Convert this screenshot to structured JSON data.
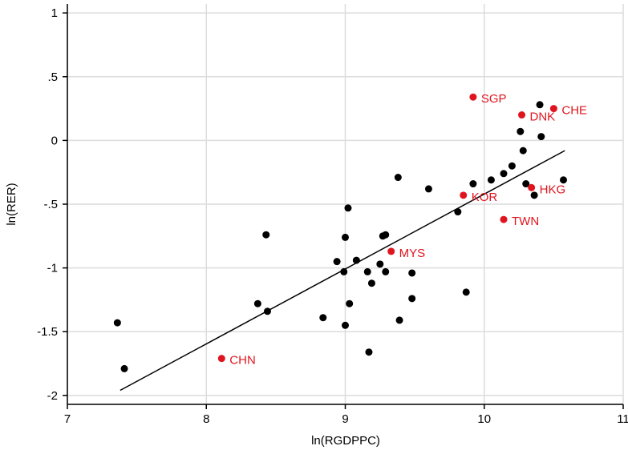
{
  "chart_data": {
    "type": "scatter",
    "title": "",
    "xlabel": "ln(RGDPPC)",
    "ylabel": "ln(RER)",
    "xlim": [
      7,
      11
    ],
    "ylim": [
      -2.07,
      1.07
    ],
    "xticks": [
      7,
      8,
      9,
      10,
      11
    ],
    "xtick_labels": [
      "7",
      "8",
      "9",
      "10",
      "11"
    ],
    "yticks": [
      1,
      0.5,
      0,
      -0.5,
      -1,
      -1.5,
      -2
    ],
    "ytick_labels": [
      "1",
      ".5",
      "0",
      "-.5",
      "-1",
      "-1.5",
      "-2"
    ],
    "grid": true,
    "colors": {
      "points": "#000000",
      "highlight": "#e0141e",
      "grid": "#dcdcdc",
      "axis": "#000000",
      "fit_line": "#000000"
    },
    "fit_line": {
      "x": [
        7.38,
        10.58
      ],
      "y": [
        -1.96,
        -0.08
      ]
    },
    "points": [
      {
        "x": 7.36,
        "y": -1.43
      },
      {
        "x": 7.41,
        "y": -1.79
      },
      {
        "x": 8.37,
        "y": -1.28
      },
      {
        "x": 8.43,
        "y": -0.74
      },
      {
        "x": 8.44,
        "y": -1.34
      },
      {
        "x": 8.84,
        "y": -1.39
      },
      {
        "x": 8.94,
        "y": -0.95
      },
      {
        "x": 8.99,
        "y": -1.03
      },
      {
        "x": 9.0,
        "y": -0.76
      },
      {
        "x": 9.0,
        "y": -1.45
      },
      {
        "x": 9.02,
        "y": -0.53
      },
      {
        "x": 9.03,
        "y": -1.28
      },
      {
        "x": 9.08,
        "y": -0.94
      },
      {
        "x": 9.16,
        "y": -1.03
      },
      {
        "x": 9.17,
        "y": -1.66
      },
      {
        "x": 9.19,
        "y": -1.12
      },
      {
        "x": 9.25,
        "y": -0.97
      },
      {
        "x": 9.27,
        "y": -0.75
      },
      {
        "x": 9.29,
        "y": -0.74
      },
      {
        "x": 9.29,
        "y": -1.03
      },
      {
        "x": 9.38,
        "y": -0.29
      },
      {
        "x": 9.39,
        "y": -1.41
      },
      {
        "x": 9.48,
        "y": -1.04
      },
      {
        "x": 9.48,
        "y": -1.24
      },
      {
        "x": 9.6,
        "y": -0.38
      },
      {
        "x": 9.81,
        "y": -0.56
      },
      {
        "x": 9.87,
        "y": -1.19
      },
      {
        "x": 9.92,
        "y": -0.34
      },
      {
        "x": 10.05,
        "y": -0.31
      },
      {
        "x": 10.14,
        "y": -0.26
      },
      {
        "x": 10.2,
        "y": -0.2
      },
      {
        "x": 10.26,
        "y": 0.07
      },
      {
        "x": 10.28,
        "y": -0.08
      },
      {
        "x": 10.3,
        "y": -0.34
      },
      {
        "x": 10.36,
        "y": -0.43
      },
      {
        "x": 10.4,
        "y": 0.28
      },
      {
        "x": 10.41,
        "y": 0.03
      },
      {
        "x": 10.57,
        "y": -0.31
      }
    ],
    "labeled_points": [
      {
        "label": "SGP",
        "x": 9.92,
        "y": 0.34
      },
      {
        "label": "DNK",
        "x": 10.27,
        "y": 0.2
      },
      {
        "label": "CHE",
        "x": 10.5,
        "y": 0.25
      },
      {
        "label": "KOR",
        "x": 9.85,
        "y": -0.43
      },
      {
        "label": "HKG",
        "x": 10.34,
        "y": -0.37
      },
      {
        "label": "TWN",
        "x": 10.14,
        "y": -0.62
      },
      {
        "label": "MYS",
        "x": 9.33,
        "y": -0.87
      },
      {
        "label": "CHN",
        "x": 8.11,
        "y": -1.71
      }
    ]
  }
}
